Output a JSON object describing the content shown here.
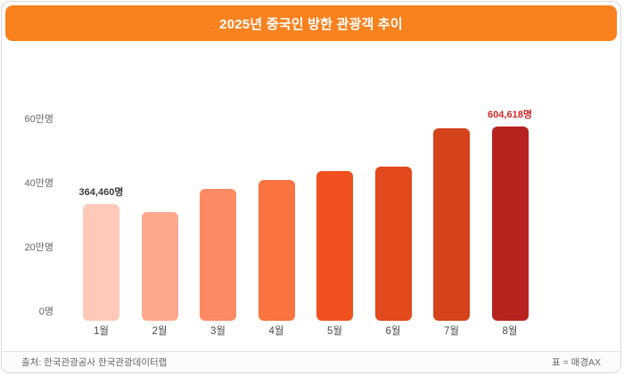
{
  "header": {
    "title": "2025년 중국인 방한 관광객 추이"
  },
  "chart_data": {
    "type": "bar",
    "title": "2025년 중국인 방한 관광객 추이",
    "categories": [
      "1월",
      "2월",
      "3월",
      "4월",
      "5월",
      "6월",
      "7월",
      "8월"
    ],
    "values": [
      364460,
      340000,
      410000,
      440000,
      468000,
      480000,
      600000,
      604618
    ],
    "bar_colors": [
      "#fec9b8",
      "#fda88d",
      "#fc8a62",
      "#fb7340",
      "#f0511f",
      "#e2491d",
      "#d4431a",
      "#b7221f"
    ],
    "yticks": [
      {
        "label": "0명",
        "value": 0
      },
      {
        "label": "20만명",
        "value": 200000
      },
      {
        "label": "40만명",
        "value": 400000
      },
      {
        "label": "60만명",
        "value": 600000
      }
    ],
    "ylim": [
      0,
      650000
    ],
    "xlabel": "",
    "ylabel": "",
    "grid": false,
    "legend": null,
    "annotations": [
      {
        "category": "1월",
        "text": "364,460명",
        "color": "#3c3c3c"
      },
      {
        "category": "8월",
        "text": "604,618명",
        "color": "#d32727"
      }
    ]
  },
  "footer": {
    "source": "출처: 한국관광공사 한국관광데이터랩",
    "credit": "표 = 매경AX"
  },
  "colors": {
    "header_bg": "#f9821e",
    "card_border": "#d9d9d9",
    "axis_text": "#666666"
  }
}
